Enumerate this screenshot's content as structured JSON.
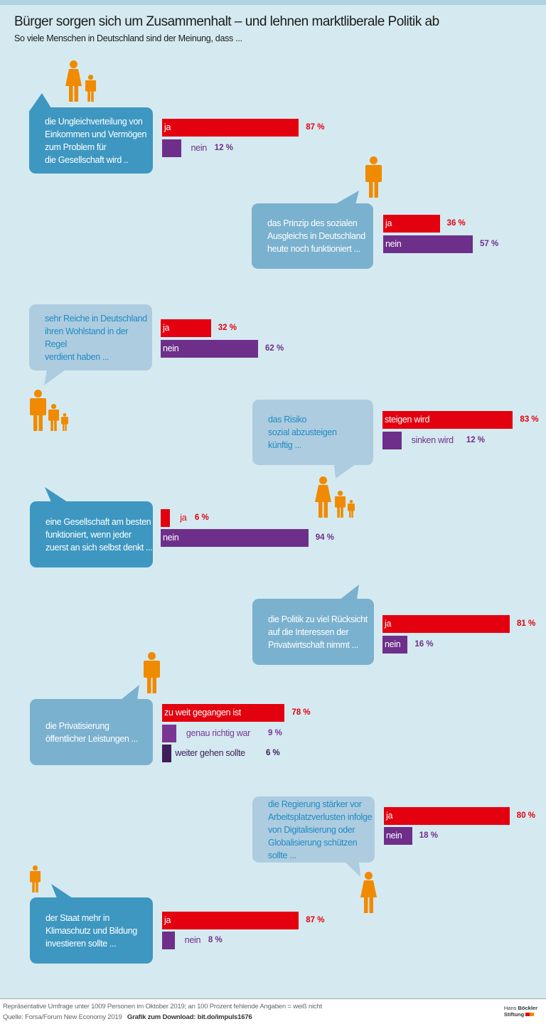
{
  "header": {
    "title": "Bürger sorgen sich um Zusammenhalt – und lehnen marktliberale Politik ab",
    "subtitle": "So viele Menschen in Deutschland sind der Meinung, dass ..."
  },
  "colors": {
    "background": "#d5eaf0",
    "ja": "#e3000f",
    "nein": "#6e2f8a",
    "mid_purple": "#7a3594",
    "dark_purple": "#3d1d5a",
    "figure": "#f08a00",
    "bubble_dark": "#3d97c1",
    "bubble_medium": "#7ab1cf",
    "bubble_light": "#aecce0"
  },
  "chart_data": {
    "type": "bar",
    "orientation": "horizontal",
    "unit": "%",
    "xlim": [
      0,
      100
    ],
    "items": [
      {
        "question": [
          "die Ungleichverteilung von",
          "Einkommen und Vermögen",
          "zum Problem für",
          "die Gesellschaft wird .."
        ],
        "bubble": "dark",
        "figure": "woman-child",
        "bars": [
          {
            "label": "ja",
            "value": 87,
            "display": "87 %",
            "color": "ja"
          },
          {
            "label": "nein",
            "value": 12,
            "display": "12 %",
            "color": "nein"
          }
        ]
      },
      {
        "question": [
          "das Prinzip des sozialen",
          "Ausgleichs in Deutschland",
          "heute noch funktioniert ..."
        ],
        "bubble": "medium",
        "figure": "man",
        "bars": [
          {
            "label": "ja",
            "value": 36,
            "display": "36 %",
            "color": "ja"
          },
          {
            "label": "nein",
            "value": 57,
            "display": "57 %",
            "color": "nein"
          }
        ]
      },
      {
        "question": [
          "sehr Reiche in Deutschland",
          "ihren Wohlstand in der Regel",
          "verdient haben ..."
        ],
        "bubble": "light",
        "figure": "man-two-children",
        "bars": [
          {
            "label": "ja",
            "value": 32,
            "display": "32 %",
            "color": "ja"
          },
          {
            "label": "nein",
            "value": 62,
            "display": "62 %",
            "color": "nein"
          }
        ]
      },
      {
        "question": [
          "das Risiko",
          "sozial abzusteigen",
          "künftig ..."
        ],
        "bubble": "light",
        "figure": "woman-two-children",
        "bars": [
          {
            "label": "steigen wird",
            "value": 83,
            "display": "83 %",
            "color": "ja"
          },
          {
            "label": "sinken wird",
            "value": 12,
            "display": "12 %",
            "color": "nein"
          }
        ]
      },
      {
        "question": [
          "eine Gesellschaft am besten",
          "funktioniert, wenn jeder",
          "zuerst an sich selbst denkt ..."
        ],
        "bubble": "dark",
        "figure": "",
        "bars": [
          {
            "label": "ja",
            "value": 6,
            "display": "6 %",
            "color": "ja"
          },
          {
            "label": "nein",
            "value": 94,
            "display": "94 %",
            "color": "nein"
          }
        ]
      },
      {
        "question": [
          "die Politik zu viel Rücksicht",
          "auf die Interessen der",
          "Privatwirtschaft nimmt ..."
        ],
        "bubble": "medium",
        "figure": "",
        "bars": [
          {
            "label": "ja",
            "value": 81,
            "display": "81 %",
            "color": "ja"
          },
          {
            "label": "nein",
            "value": 16,
            "display": "16 %",
            "color": "nein"
          }
        ]
      },
      {
        "question": [
          "die Privatisierung",
          "öffentlicher Leistungen ..."
        ],
        "bubble": "medium",
        "figure": "man",
        "bars": [
          {
            "label": "zu weit gegangen ist",
            "value": 78,
            "display": "78 %",
            "color": "ja"
          },
          {
            "label": "genau richtig war",
            "value": 9,
            "display": "9 %",
            "color": "mid_purple"
          },
          {
            "label": "weiter gehen sollte",
            "value": 6,
            "display": "6 %",
            "color": "dark_purple"
          }
        ]
      },
      {
        "question": [
          "die Regierung stärker vor",
          "Arbeitsplatzverlusten infolge",
          "von Digitalisierung oder",
          "Globalisierung schützen sollte ..."
        ],
        "bubble": "light",
        "figure": "woman",
        "bars": [
          {
            "label": "ja",
            "value": 80,
            "display": "80 %",
            "color": "ja"
          },
          {
            "label": "nein",
            "value": 18,
            "display": "18 %",
            "color": "nein"
          }
        ]
      },
      {
        "question": [
          "der Staat mehr in",
          "Klimaschutz und Bildung",
          "investieren sollte ..."
        ],
        "bubble": "dark",
        "figure": "man",
        "bars": [
          {
            "label": "ja",
            "value": 87,
            "display": "87 %",
            "color": "ja"
          },
          {
            "label": "nein",
            "value": 8,
            "display": "8 %",
            "color": "nein"
          }
        ]
      }
    ]
  },
  "footer": {
    "note": "Repräsentative Umfrage unter 1009 Personen im Oktober 2019; an 100 Prozent fehlende Angaben = weiß nicht",
    "source": "Quelle:  Forsa/Forum New Economy 2019",
    "download": "Grafik zum Download: bit.do/impuls1676",
    "logo_line1": "Hans",
    "logo_line1b": "Böckler",
    "logo_line2": "Stiftung"
  }
}
